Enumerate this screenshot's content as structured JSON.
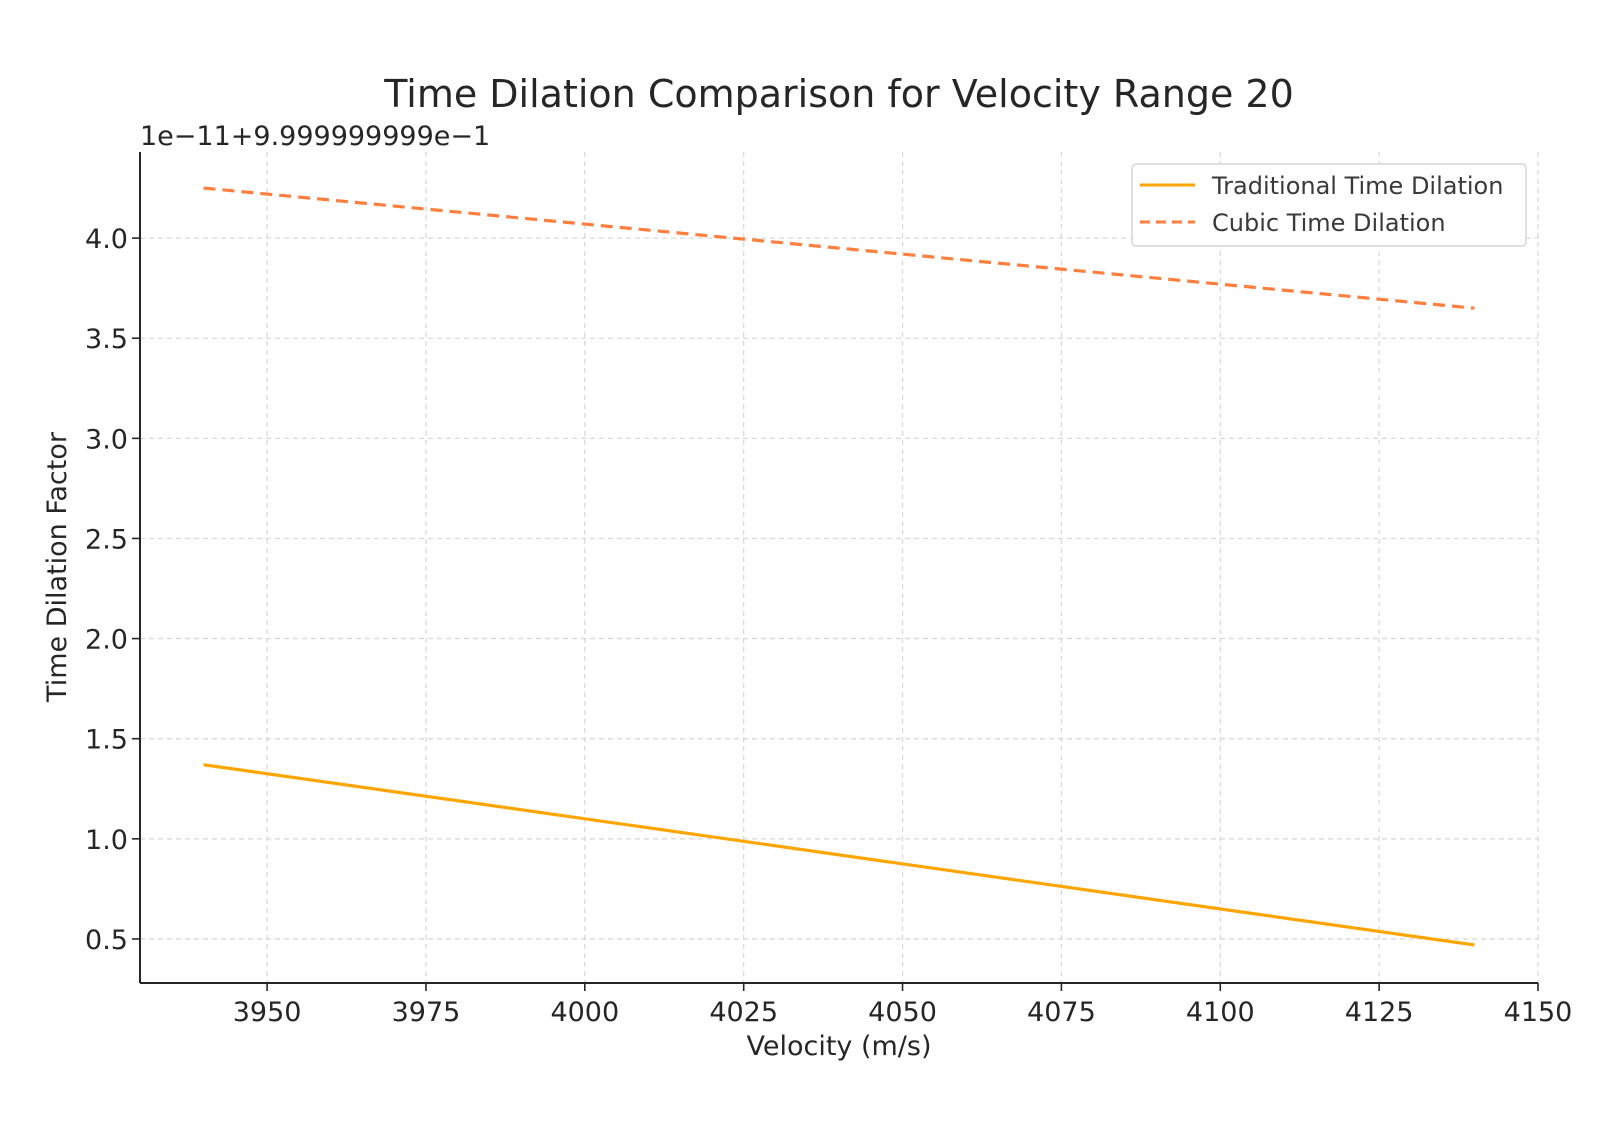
{
  "chart_data": {
    "type": "line",
    "title": "Time Dilation Comparison for Velocity Range 20",
    "offset_text": "1e−11+9.999999999e−1",
    "xlabel": "Velocity (m/s)",
    "ylabel": "Time Dilation Factor",
    "xlim": [
      3930,
      4150
    ],
    "ylim": [
      0.28,
      4.43
    ],
    "x_ticks": [
      3950,
      3975,
      4000,
      4025,
      4050,
      4075,
      4100,
      4125,
      4150
    ],
    "x_tick_labels": [
      "3950",
      "3975",
      "4000",
      "4025",
      "4050",
      "4075",
      "4100",
      "4125",
      "4150"
    ],
    "y_ticks": [
      0.5,
      1.0,
      1.5,
      2.0,
      2.5,
      3.0,
      3.5,
      4.0
    ],
    "y_tick_labels": [
      "0.5",
      "1.0",
      "1.5",
      "2.0",
      "2.5",
      "3.0",
      "3.5",
      "4.0"
    ],
    "grid": true,
    "legend_position": "top-right",
    "series": [
      {
        "name": "Traditional Time Dilation",
        "style": "solid",
        "color": "#ffa500",
        "x": [
          3940,
          4140
        ],
        "values": [
          1.37,
          0.47
        ]
      },
      {
        "name": "Cubic Time Dilation",
        "style": "dashed",
        "color": "#ff7f3f",
        "x": [
          3940,
          4140
        ],
        "values": [
          4.25,
          3.65
        ]
      }
    ]
  }
}
